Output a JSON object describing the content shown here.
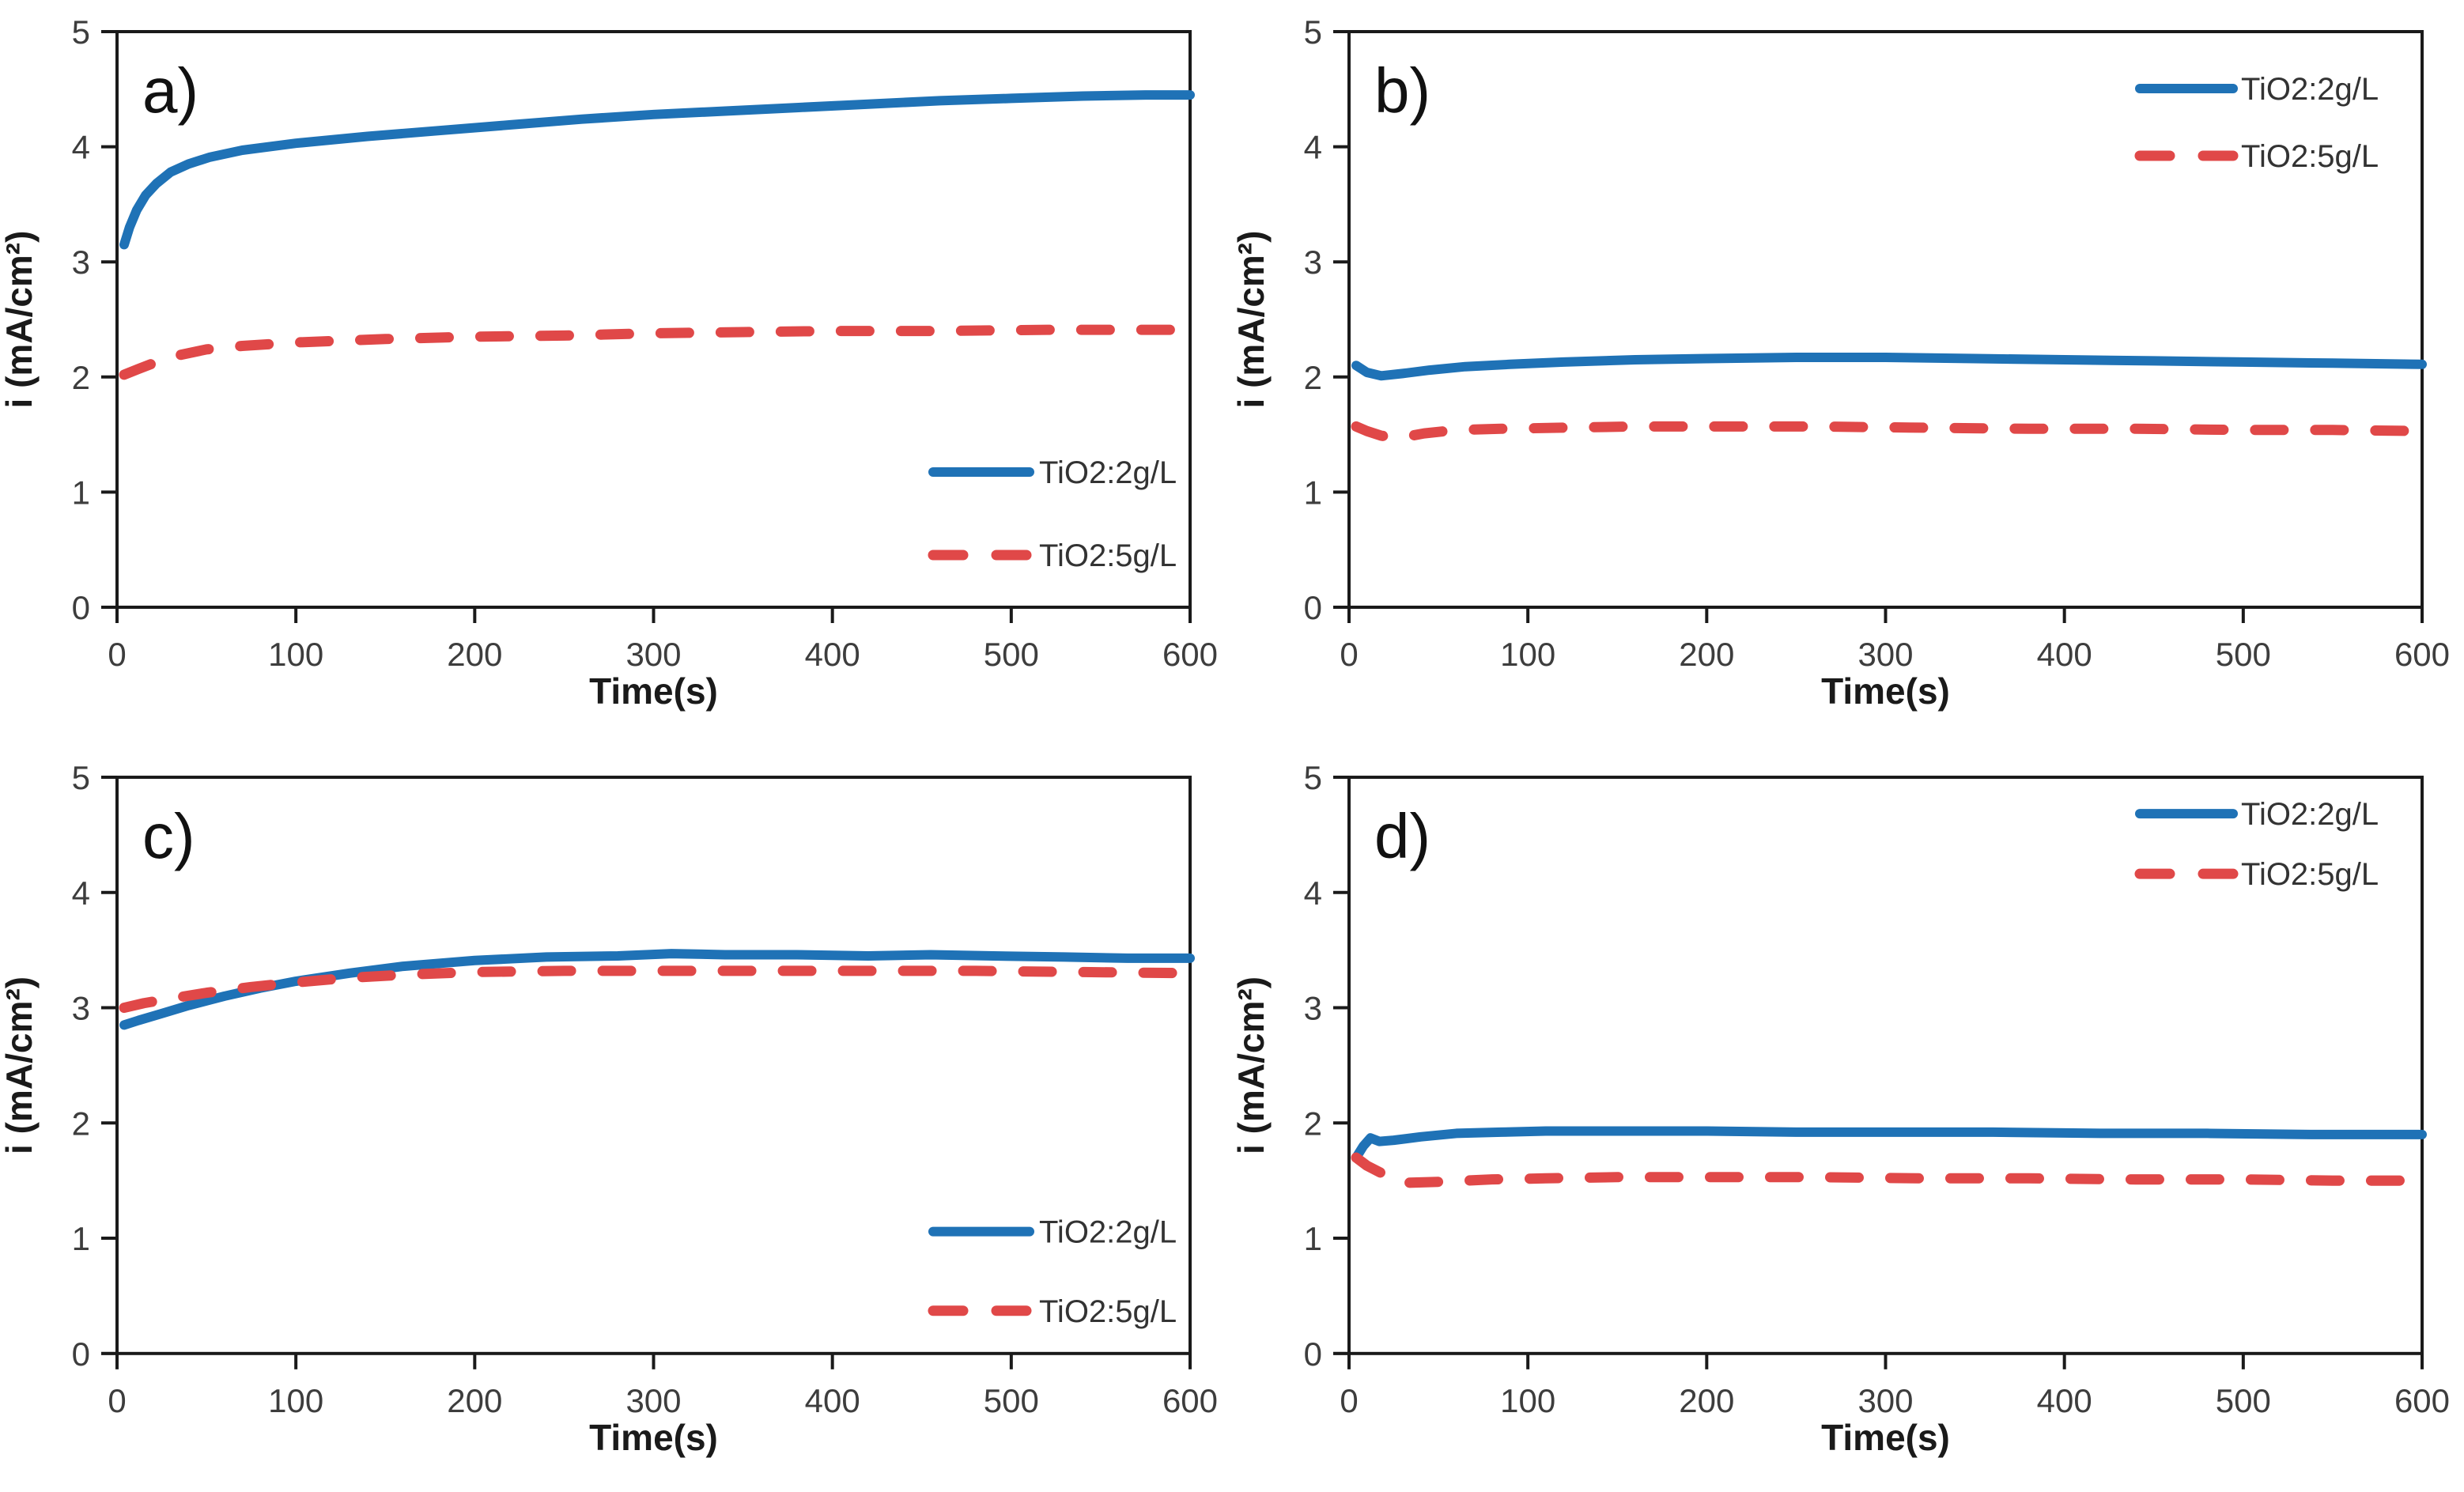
{
  "figure": {
    "background": "#ffffff",
    "x_axis_label": "Time(s)",
    "y_axis_label": "i (mA/cm²)",
    "series_labels": [
      "TiO2:2g/L",
      "TiO2:5g/L"
    ],
    "colors": {
      "series_blue": "#1f72b6",
      "series_red": "#e04848",
      "axis": "#1a1a1a",
      "tick_text": "#3d3d3d",
      "legend_text": "#333333",
      "panel_label_text": "#111111"
    }
  },
  "chart_data": [
    {
      "type": "line",
      "panel_label": "a)",
      "xlabel": "Time(s)",
      "ylabel": "i (mA/cm²)",
      "xlim": [
        0,
        600
      ],
      "ylim": [
        0,
        5
      ],
      "x_ticks": [
        0,
        100,
        200,
        300,
        400,
        500,
        600
      ],
      "y_ticks": [
        0,
        1,
        2,
        3,
        4,
        5
      ],
      "grid": false,
      "legend_position": "lower right",
      "series": [
        {
          "name": "TiO2:2g/L",
          "style": "solid",
          "color": "#1f72b6",
          "points": [
            [
              4,
              3.15
            ],
            [
              7,
              3.3
            ],
            [
              11,
              3.45
            ],
            [
              16,
              3.58
            ],
            [
              22,
              3.68
            ],
            [
              30,
              3.78
            ],
            [
              40,
              3.85
            ],
            [
              52,
              3.91
            ],
            [
              70,
              3.97
            ],
            [
              100,
              4.03
            ],
            [
              140,
              4.09
            ],
            [
              180,
              4.14
            ],
            [
              220,
              4.19
            ],
            [
              260,
              4.24
            ],
            [
              300,
              4.28
            ],
            [
              340,
              4.31
            ],
            [
              380,
              4.34
            ],
            [
              420,
              4.37
            ],
            [
              460,
              4.4
            ],
            [
              500,
              4.42
            ],
            [
              540,
              4.44
            ],
            [
              575,
              4.45
            ],
            [
              600,
              4.45
            ]
          ]
        },
        {
          "name": "TiO2:5g/L",
          "style": "dashed",
          "color": "#e04848",
          "points": [
            [
              4,
              2.02
            ],
            [
              12,
              2.07
            ],
            [
              22,
              2.13
            ],
            [
              35,
              2.19
            ],
            [
              50,
              2.24
            ],
            [
              70,
              2.27
            ],
            [
              100,
              2.3
            ],
            [
              150,
              2.33
            ],
            [
              200,
              2.35
            ],
            [
              250,
              2.36
            ],
            [
              300,
              2.38
            ],
            [
              350,
              2.39
            ],
            [
              400,
              2.4
            ],
            [
              460,
              2.4
            ],
            [
              520,
              2.41
            ],
            [
              600,
              2.41
            ]
          ]
        }
      ]
    },
    {
      "type": "line",
      "panel_label": "b)",
      "xlabel": "Time(s)",
      "ylabel": "i (mA/cm²)",
      "xlim": [
        0,
        600
      ],
      "ylim": [
        0,
        5
      ],
      "x_ticks": [
        0,
        100,
        200,
        300,
        400,
        500,
        600
      ],
      "y_ticks": [
        0,
        1,
        2,
        3,
        4,
        5
      ],
      "grid": false,
      "legend_position": "upper right",
      "series": [
        {
          "name": "TiO2:2g/L",
          "style": "solid",
          "color": "#1f72b6",
          "points": [
            [
              4,
              2.1
            ],
            [
              10,
              2.04
            ],
            [
              18,
              2.01
            ],
            [
              30,
              2.03
            ],
            [
              45,
              2.06
            ],
            [
              65,
              2.09
            ],
            [
              90,
              2.11
            ],
            [
              120,
              2.13
            ],
            [
              160,
              2.15
            ],
            [
              200,
              2.16
            ],
            [
              250,
              2.17
            ],
            [
              300,
              2.17
            ],
            [
              350,
              2.16
            ],
            [
              400,
              2.15
            ],
            [
              450,
              2.14
            ],
            [
              500,
              2.13
            ],
            [
              550,
              2.12
            ],
            [
              600,
              2.11
            ]
          ]
        },
        {
          "name": "TiO2:5g/L",
          "style": "dashed",
          "color": "#e04848",
          "points": [
            [
              4,
              1.57
            ],
            [
              10,
              1.53
            ],
            [
              18,
              1.49
            ],
            [
              28,
              1.47
            ],
            [
              42,
              1.51
            ],
            [
              60,
              1.54
            ],
            [
              85,
              1.55
            ],
            [
              120,
              1.56
            ],
            [
              160,
              1.57
            ],
            [
              200,
              1.57
            ],
            [
              260,
              1.57
            ],
            [
              320,
              1.56
            ],
            [
              380,
              1.55
            ],
            [
              440,
              1.55
            ],
            [
              500,
              1.54
            ],
            [
              550,
              1.54
            ],
            [
              600,
              1.53
            ]
          ]
        }
      ]
    },
    {
      "type": "line",
      "panel_label": "c)",
      "xlabel": "Time(s)",
      "ylabel": "i (mA/cm²)",
      "xlim": [
        0,
        600
      ],
      "ylim": [
        0,
        5
      ],
      "x_ticks": [
        0,
        100,
        200,
        300,
        400,
        500,
        600
      ],
      "y_ticks": [
        0,
        1,
        2,
        3,
        4,
        5
      ],
      "grid": false,
      "legend_position": "lower right",
      "series": [
        {
          "name": "TiO2:2g/L",
          "style": "solid",
          "color": "#1f72b6",
          "points": [
            [
              4,
              2.85
            ],
            [
              12,
              2.89
            ],
            [
              25,
              2.95
            ],
            [
              40,
              3.02
            ],
            [
              60,
              3.1
            ],
            [
              80,
              3.17
            ],
            [
              100,
              3.23
            ],
            [
              130,
              3.3
            ],
            [
              160,
              3.36
            ],
            [
              200,
              3.41
            ],
            [
              240,
              3.44
            ],
            [
              280,
              3.45
            ],
            [
              310,
              3.47
            ],
            [
              340,
              3.46
            ],
            [
              380,
              3.46
            ],
            [
              420,
              3.45
            ],
            [
              455,
              3.46
            ],
            [
              490,
              3.45
            ],
            [
              530,
              3.44
            ],
            [
              565,
              3.43
            ],
            [
              600,
              3.43
            ]
          ]
        },
        {
          "name": "TiO2:5g/L",
          "style": "dashed",
          "color": "#e04848",
          "points": [
            [
              4,
              3.0
            ],
            [
              15,
              3.04
            ],
            [
              30,
              3.08
            ],
            [
              50,
              3.13
            ],
            [
              75,
              3.18
            ],
            [
              100,
              3.22
            ],
            [
              130,
              3.26
            ],
            [
              165,
              3.29
            ],
            [
              200,
              3.31
            ],
            [
              250,
              3.32
            ],
            [
              300,
              3.32
            ],
            [
              360,
              3.32
            ],
            [
              420,
              3.32
            ],
            [
              480,
              3.32
            ],
            [
              540,
              3.31
            ],
            [
              600,
              3.3
            ]
          ]
        }
      ]
    },
    {
      "type": "line",
      "panel_label": "d)",
      "xlabel": "Time(s)",
      "ylabel": "i (mA/cm²)",
      "xlim": [
        0,
        600
      ],
      "ylim": [
        0,
        5
      ],
      "x_ticks": [
        0,
        100,
        200,
        300,
        400,
        500,
        600
      ],
      "y_ticks": [
        0,
        1,
        2,
        3,
        4,
        5
      ],
      "grid": false,
      "legend_position": "upper right",
      "series": [
        {
          "name": "TiO2:2g/L",
          "style": "solid",
          "color": "#1f72b6",
          "points": [
            [
              4,
              1.7
            ],
            [
              8,
              1.8
            ],
            [
              12,
              1.87
            ],
            [
              17,
              1.84
            ],
            [
              25,
              1.85
            ],
            [
              40,
              1.88
            ],
            [
              60,
              1.91
            ],
            [
              85,
              1.92
            ],
            [
              110,
              1.93
            ],
            [
              150,
              1.93
            ],
            [
              200,
              1.93
            ],
            [
              250,
              1.92
            ],
            [
              300,
              1.92
            ],
            [
              360,
              1.92
            ],
            [
              420,
              1.91
            ],
            [
              480,
              1.91
            ],
            [
              540,
              1.9
            ],
            [
              600,
              1.9
            ]
          ]
        },
        {
          "name": "TiO2:5g/L",
          "style": "dashed",
          "color": "#e04848",
          "points": [
            [
              4,
              1.7
            ],
            [
              10,
              1.63
            ],
            [
              20,
              1.55
            ],
            [
              30,
              1.48
            ],
            [
              50,
              1.49
            ],
            [
              80,
              1.51
            ],
            [
              110,
              1.52
            ],
            [
              150,
              1.53
            ],
            [
              200,
              1.53
            ],
            [
              260,
              1.53
            ],
            [
              320,
              1.52
            ],
            [
              380,
              1.52
            ],
            [
              440,
              1.51
            ],
            [
              500,
              1.51
            ],
            [
              550,
              1.5
            ],
            [
              600,
              1.5
            ]
          ]
        }
      ]
    }
  ]
}
